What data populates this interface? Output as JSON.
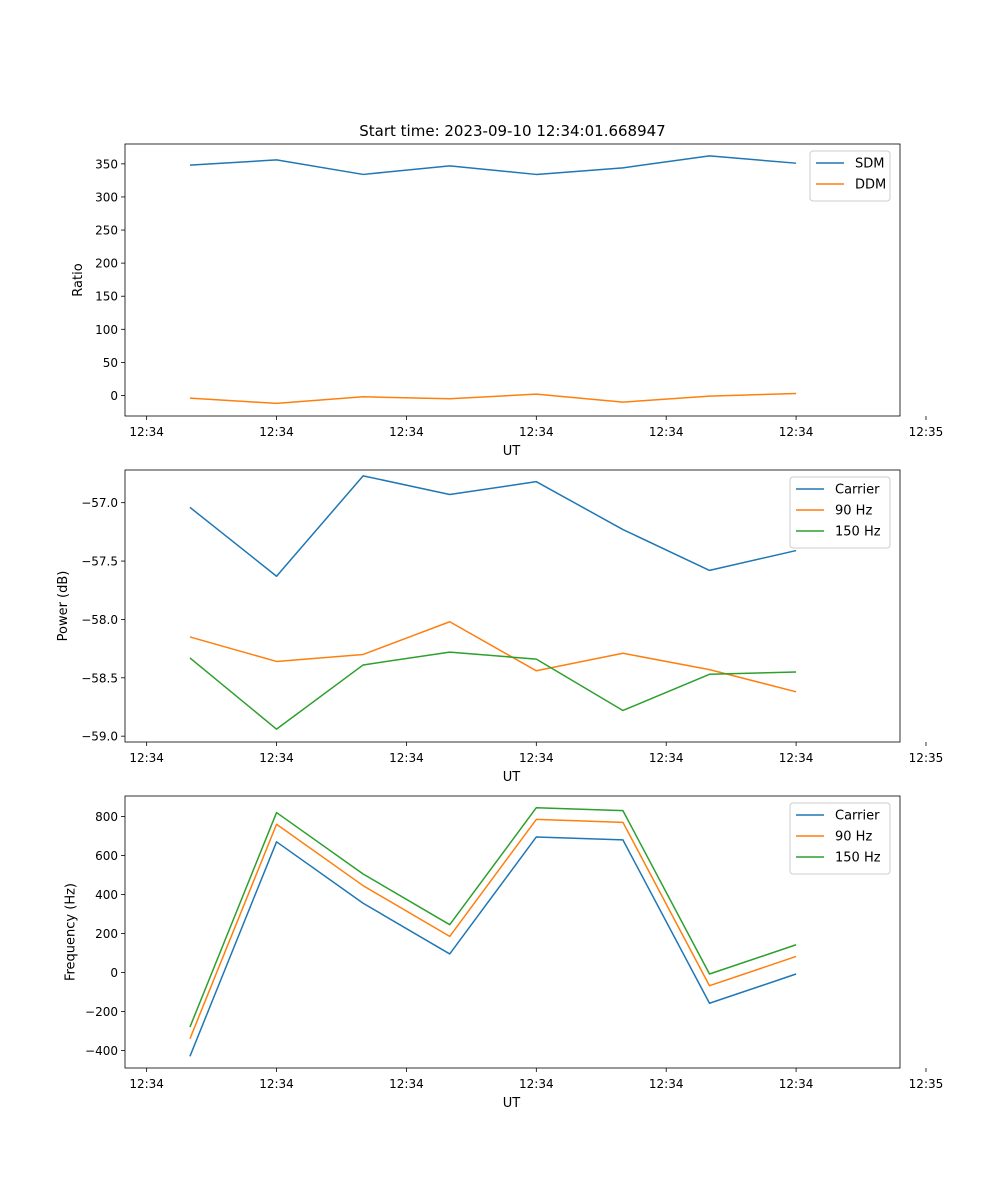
{
  "figure": {
    "title": "Start time: 2023-09-10 12:34:01.668947"
  },
  "colors": {
    "blue": "#1f77b4",
    "orange": "#ff7f0e",
    "green": "#2ca02c"
  },
  "chart_data": [
    {
      "type": "line",
      "title": "Start time: 2023-09-10 12:34:01.668947",
      "xlabel": "UT",
      "ylabel": "Ratio",
      "x": [
        1,
        2,
        3,
        4,
        5,
        6,
        7,
        8
      ],
      "xlim": [
        0.25,
        9.2
      ],
      "xticks": [
        0.5,
        2,
        3.5,
        5,
        6.5,
        8,
        9.5
      ],
      "xtick_labels": [
        "12:34",
        "12:34",
        "12:34",
        "12:34",
        "12:34",
        "12:34",
        "12:35"
      ],
      "ylim": [
        -31,
        380
      ],
      "yticks": [
        0,
        50,
        100,
        150,
        200,
        250,
        300,
        350
      ],
      "ytick_labels": [
        "0",
        "50",
        "100",
        "150",
        "200",
        "250",
        "300",
        "350"
      ],
      "legend": "top-right",
      "series": [
        {
          "name": "SDM",
          "color": "#1f77b4",
          "values": [
            348,
            356,
            334,
            347,
            334,
            344,
            362,
            351
          ]
        },
        {
          "name": "DDM",
          "color": "#ff7f0e",
          "values": [
            -4,
            -12,
            -2,
            -5,
            2,
            -10,
            -1,
            3
          ]
        }
      ]
    },
    {
      "type": "line",
      "title": "",
      "xlabel": "UT",
      "ylabel": "Power (dB)",
      "x": [
        1,
        2,
        3,
        4,
        5,
        6,
        7,
        8
      ],
      "xlim": [
        0.25,
        9.2
      ],
      "xticks": [
        0.5,
        2,
        3.5,
        5,
        6.5,
        8,
        9.5
      ],
      "xtick_labels": [
        "12:34",
        "12:34",
        "12:34",
        "12:34",
        "12:34",
        "12:34",
        "12:35"
      ],
      "ylim": [
        -59.05,
        -56.72
      ],
      "yticks": [
        -59.0,
        -58.5,
        -58.0,
        -57.5,
        -57.0
      ],
      "ytick_labels": [
        "−59.0",
        "−58.5",
        "−58.0",
        "−57.5",
        "−57.0"
      ],
      "legend": "top-right",
      "series": [
        {
          "name": "Carrier",
          "color": "#1f77b4",
          "values": [
            -57.04,
            -57.63,
            -56.77,
            -56.93,
            -56.82,
            -57.23,
            -57.58,
            -57.41
          ]
        },
        {
          "name": "90 Hz",
          "color": "#ff7f0e",
          "values": [
            -58.15,
            -58.36,
            -58.3,
            -58.02,
            -58.44,
            -58.29,
            -58.43,
            -58.62
          ]
        },
        {
          "name": "150 Hz",
          "color": "#2ca02c",
          "values": [
            -58.33,
            -58.94,
            -58.39,
            -58.28,
            -58.34,
            -58.78,
            -58.47,
            -58.45
          ]
        }
      ]
    },
    {
      "type": "line",
      "title": "",
      "xlabel": "UT",
      "ylabel": "Frequency (Hz)",
      "x": [
        1,
        2,
        3,
        4,
        5,
        6,
        7,
        8
      ],
      "xlim": [
        0.25,
        9.2
      ],
      "xticks": [
        0.5,
        2,
        3.5,
        5,
        6.5,
        8,
        9.5
      ],
      "xtick_labels": [
        "12:34",
        "12:34",
        "12:34",
        "12:34",
        "12:34",
        "12:34",
        "12:35"
      ],
      "ylim": [
        -490,
        905
      ],
      "yticks": [
        -400,
        -200,
        0,
        200,
        400,
        600,
        800
      ],
      "ytick_labels": [
        "−400",
        "−200",
        "0",
        "200",
        "400",
        "600",
        "800"
      ],
      "legend": "top-right",
      "series": [
        {
          "name": "Carrier",
          "color": "#1f77b4",
          "values": [
            -430,
            670,
            355,
            95,
            695,
            680,
            -158,
            -8
          ]
        },
        {
          "name": "90 Hz",
          "color": "#ff7f0e",
          "values": [
            -340,
            760,
            445,
            185,
            785,
            770,
            -68,
            82
          ]
        },
        {
          "name": "150 Hz",
          "color": "#2ca02c",
          "values": [
            -280,
            820,
            505,
            245,
            845,
            830,
            -8,
            142
          ]
        }
      ]
    }
  ]
}
